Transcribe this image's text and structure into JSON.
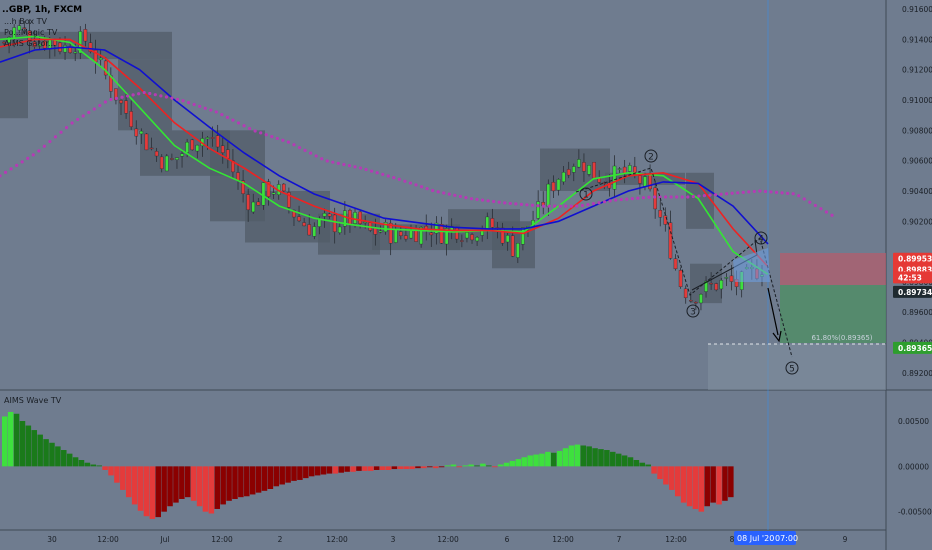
{
  "header": {
    "symbol_line": "..GBP, 1h, FXCM",
    "indicators": [
      "...h Box TV",
      "Po...Magic TV",
      "AIMS Gator..."
    ]
  },
  "colors": {
    "background": "#6f7c8f",
    "bull": "#3ee03e",
    "bear": "#e43b3b",
    "bull_dark": "#1a7a1a",
    "bear_dark": "#8b0000",
    "ma_green": "#33e633",
    "ma_red": "#ee2222",
    "ma_blue": "#1010d0",
    "ma_purple": "#b53bb5",
    "box": "#525c68"
  },
  "price_badges": [
    {
      "label": "0.89953",
      "value": 0.89953,
      "color": "#e53935"
    },
    {
      "label": "0.89883",
      "value": 0.89883,
      "color": "#e53935"
    },
    {
      "label": "42:53",
      "value": 0.8983,
      "color": "#e53935"
    },
    {
      "label": "0.89734",
      "value": 0.89734,
      "color": "#1f2a30"
    },
    {
      "label": "0.89365",
      "value": 0.89365,
      "color": "#2e9e2e"
    }
  ],
  "annotation_level": "61.80%(0.89365)",
  "wave_labels": [
    "1",
    "2",
    "3",
    "4",
    "5"
  ],
  "time_badge": {
    "date": "08 Jul '20",
    "time": "07:00"
  },
  "chart_data": [
    {
      "type": "candlestick",
      "y_ticks": [
        0.916,
        0.914,
        0.912,
        0.91,
        0.908,
        0.906,
        0.904,
        0.902,
        0.898,
        0.896,
        0.894,
        0.892
      ],
      "y_tick_labels": [
        "0.91600",
        "0.91400",
        "0.91200",
        "0.91000",
        "0.90800",
        "0.90600",
        "0.90400",
        "0.90200",
        "0.89800",
        "0.89600",
        "0.89400",
        "0.89200"
      ],
      "ylim": [
        0.891,
        0.9166
      ],
      "x_tick_labels": [
        "30",
        "12:00",
        "Jul",
        "12:00",
        "2",
        "12:00",
        "3",
        "12:00",
        "6",
        "12:00",
        "7",
        "12:00",
        "8",
        "9"
      ],
      "ohlc_path": [
        0.9138,
        0.9148,
        0.9144,
        0.9138,
        0.914,
        0.9134,
        0.9138,
        0.914,
        0.9124,
        0.911,
        0.9095,
        0.9085,
        0.9072,
        0.9062,
        0.9058,
        0.9065,
        0.9074,
        0.9076,
        0.907,
        0.906,
        0.904,
        0.903,
        0.904,
        0.9042,
        0.903,
        0.902,
        0.9015,
        0.902,
        0.9018,
        0.9022,
        0.9018,
        0.9012,
        0.9015,
        0.901,
        0.9012,
        0.9014,
        0.9016,
        0.9012,
        0.9016,
        0.9012,
        0.9015,
        0.9018,
        0.9012,
        0.9002,
        0.9015,
        0.9025,
        0.904,
        0.9052,
        0.906,
        0.9058,
        0.905,
        0.9048,
        0.9052,
        0.905,
        0.9045,
        0.903,
        0.901,
        0.898,
        0.897,
        0.8975,
        0.8978,
        0.898,
        0.8978,
        0.8985,
        0.899
      ],
      "moving_averages": [
        {
          "color_key": "ma_green",
          "values": [
            0.914,
            0.9142,
            0.9138,
            0.912,
            0.9095,
            0.907,
            0.9055,
            0.9045,
            0.903,
            0.9022,
            0.9018,
            0.9015,
            0.9014,
            0.9013,
            0.9014,
            0.9013,
            0.903,
            0.9048,
            0.9052,
            0.905,
            0.9035,
            0.9,
            0.8985
          ]
        },
        {
          "color_key": "ma_red",
          "values": [
            0.9135,
            0.914,
            0.914,
            0.9128,
            0.9108,
            0.9085,
            0.9068,
            0.9055,
            0.904,
            0.903,
            0.9022,
            0.9018,
            0.9015,
            0.9014,
            0.9014,
            0.9012,
            0.9022,
            0.904,
            0.905,
            0.9052,
            0.9045,
            0.9015,
            0.899
          ]
        },
        {
          "color_key": "ma_blue",
          "values": [
            0.9125,
            0.9133,
            0.9135,
            0.9133,
            0.912,
            0.91,
            0.9082,
            0.9065,
            0.905,
            0.9038,
            0.903,
            0.9022,
            0.9019,
            0.9016,
            0.9015,
            0.9015,
            0.902,
            0.903,
            0.904,
            0.9046,
            0.9045,
            0.903,
            0.9005
          ]
        },
        {
          "color_key": "ma_purple",
          "values": [
            0.905,
            0.9065,
            0.9085,
            0.91,
            0.9105,
            0.91,
            0.9092,
            0.908,
            0.9072,
            0.906,
            0.9055,
            0.9048,
            0.904,
            0.9035,
            0.9032,
            0.903,
            0.903,
            0.9034,
            0.9036,
            0.9036,
            0.9038,
            0.904,
            0.9038,
            0.9024
          ]
        }
      ]
    },
    {
      "type": "bar",
      "title": "AIMS Wave TV",
      "y_ticks": [
        0.005,
        0.0,
        -0.005
      ],
      "y_tick_labels": [
        "0.00500",
        "0.00000",
        "-0.00500"
      ],
      "ylim": [
        -0.0068,
        0.0082
      ],
      "values": [
        0.0055,
        0.006,
        0.0058,
        0.005,
        0.0045,
        0.004,
        0.0035,
        0.003,
        0.0026,
        0.0022,
        0.0018,
        0.0014,
        0.001,
        0.0007,
        0.0004,
        0.0002,
        0.0001,
        -0.0004,
        -0.001,
        -0.0018,
        -0.0026,
        -0.0034,
        -0.0042,
        -0.0049,
        -0.0055,
        -0.0058,
        -0.0056,
        -0.005,
        -0.0044,
        -0.004,
        -0.0036,
        -0.0034,
        -0.0038,
        -0.0044,
        -0.005,
        -0.0052,
        -0.0047,
        -0.0042,
        -0.0038,
        -0.0036,
        -0.0034,
        -0.0033,
        -0.0031,
        -0.0029,
        -0.0027,
        -0.0025,
        -0.0022,
        -0.002,
        -0.0018,
        -0.0016,
        -0.0015,
        -0.0013,
        -0.0011,
        -0.001,
        -0.0009,
        -0.0008,
        -0.0008,
        -0.0007,
        -0.0006,
        -0.0006,
        -0.0005,
        -0.0005,
        -0.0005,
        -0.0004,
        -0.0004,
        -0.0004,
        -0.0003,
        -0.0003,
        -0.0003,
        -0.0003,
        -0.0002,
        -0.0002,
        -0.0001,
        -0.0002,
        -0.0001,
        0.0001,
        0.0002,
        -0.0001,
        0.0001,
        0.0002,
        0.0001,
        0.0003,
        0.0001,
        -0.0001,
        0.0002,
        0.0004,
        0.0006,
        0.0008,
        0.001,
        0.0012,
        0.0013,
        0.0014,
        0.0016,
        0.0015,
        0.0017,
        0.002,
        0.0023,
        0.0024,
        0.0023,
        0.0022,
        0.002,
        0.0019,
        0.0018,
        0.0016,
        0.0014,
        0.0012,
        0.001,
        0.0007,
        0.0004,
        0.0002,
        -0.0008,
        -0.0014,
        -0.002,
        -0.0026,
        -0.0033,
        -0.004,
        -0.0044,
        -0.0047,
        -0.005,
        -0.0044,
        -0.004,
        -0.0042,
        -0.0038,
        -0.0034
      ]
    }
  ]
}
